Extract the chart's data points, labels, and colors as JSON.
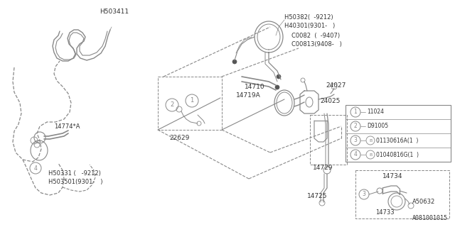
{
  "bg_color": "#ffffff",
  "line_color": "#888888",
  "dark_color": "#555555",
  "fig_width": 6.4,
  "fig_height": 3.2,
  "dpi": 100,
  "diagram_id": "A081001015",
  "legend_items": [
    [
      1,
      "11024"
    ],
    [
      2,
      "D91005"
    ],
    [
      3,
      "B",
      "01130616A(1  )"
    ],
    [
      4,
      "B",
      "01040816G(1  )"
    ]
  ]
}
